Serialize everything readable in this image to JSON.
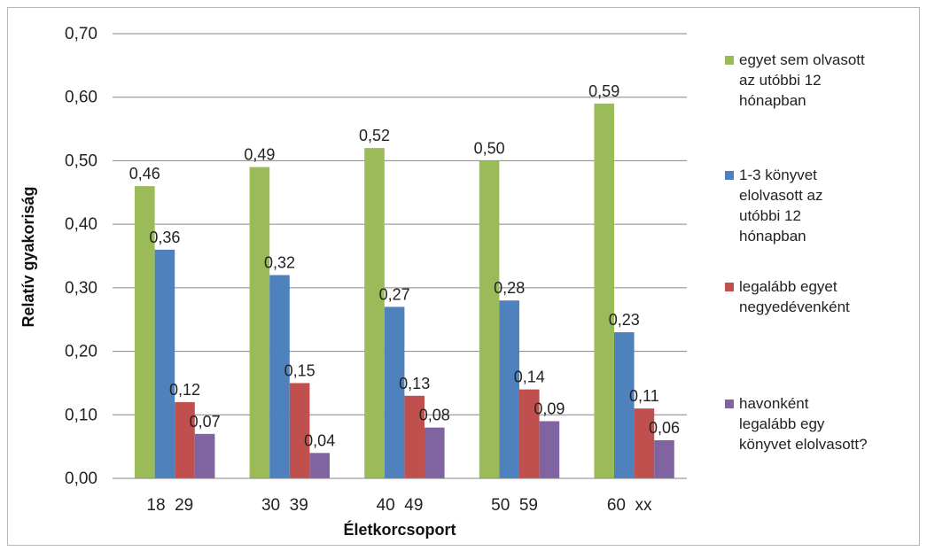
{
  "chart_data": {
    "type": "bar",
    "categories": [
      "18  29",
      "30  39",
      "40  49",
      "50  59",
      "60  xx"
    ],
    "series": [
      {
        "name": "egyet sem olvasott\naz utóbbi 12\nhónapban",
        "color": "#9bbb59",
        "values": [
          0.46,
          0.49,
          0.52,
          0.5,
          0.59
        ]
      },
      {
        "name": "1-3 könyvet\nelolvasott az\nutóbbi 12\nhónapban",
        "color": "#4f81bd",
        "values": [
          0.36,
          0.32,
          0.27,
          0.28,
          0.23
        ]
      },
      {
        "name": "legalább egyet\nnegyedévenként",
        "color": "#c0504d",
        "values": [
          0.12,
          0.15,
          0.13,
          0.14,
          0.11
        ]
      },
      {
        "name": "havonként\nlegalább egy\nkönyvet elolvasott?",
        "color": "#8064a2",
        "values": [
          0.07,
          0.04,
          0.08,
          0.09,
          0.06
        ]
      }
    ],
    "data_labels": [
      [
        "0,46",
        "0,49",
        "0,52",
        "0,50",
        "0,59"
      ],
      [
        "0,36",
        "0,32",
        "0,27",
        "0,28",
        "0,23"
      ],
      [
        "0,12",
        "0,15",
        "0,13",
        "0,14",
        "0,11"
      ],
      [
        "0,07",
        "0,04",
        "0,08",
        "0,09",
        "0,06"
      ]
    ],
    "y_ticks": [
      "0,00",
      "0,10",
      "0,20",
      "0,30",
      "0,40",
      "0,50",
      "0,60",
      "0,70"
    ],
    "ylim": [
      0,
      0.7
    ],
    "xlabel": "Életkorcsoport",
    "ylabel": "Relatív gyakoriság",
    "grid": true,
    "legend_position": "right"
  }
}
